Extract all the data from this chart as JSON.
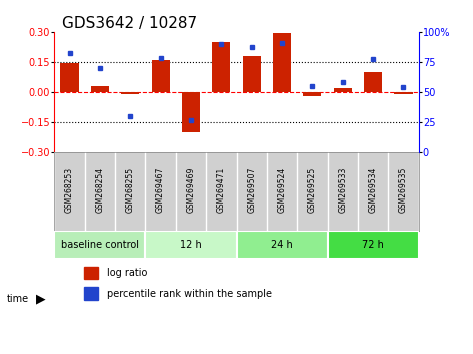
{
  "title": "GDS3642 / 10287",
  "samples": [
    "GSM268253",
    "GSM268254",
    "GSM268255",
    "GSM269467",
    "GSM269469",
    "GSM269471",
    "GSM269507",
    "GSM269524",
    "GSM269525",
    "GSM269533",
    "GSM269534",
    "GSM269535"
  ],
  "log_ratio": [
    0.145,
    0.03,
    -0.01,
    0.16,
    -0.2,
    0.25,
    0.18,
    0.295,
    -0.02,
    0.02,
    0.1,
    -0.01
  ],
  "percentile_rank": [
    82,
    70,
    30,
    78,
    27,
    90,
    87,
    91,
    55,
    58,
    77,
    54
  ],
  "groups": [
    {
      "label": "baseline control",
      "n": 3,
      "color": "#b8eeb8"
    },
    {
      "label": "12 h",
      "n": 3,
      "color": "#c8f8c8"
    },
    {
      "label": "24 h",
      "n": 3,
      "color": "#90ee90"
    },
    {
      "label": "72 h",
      "n": 3,
      "color": "#44dd44"
    }
  ],
  "bar_color": "#cc2200",
  "dot_color": "#2244cc",
  "ylim_left": [
    -0.3,
    0.3
  ],
  "ylim_right": [
    0,
    100
  ],
  "yticks_left": [
    -0.3,
    -0.15,
    0,
    0.15,
    0.3
  ],
  "yticks_right": [
    0,
    25,
    50,
    75,
    100
  ],
  "bg_color": "#ffffff",
  "cell_bg": "#d0d0d0",
  "title_fontsize": 11,
  "tick_fontsize": 7,
  "sample_fontsize": 5.5,
  "group_fontsize": 7,
  "legend_fontsize": 7
}
